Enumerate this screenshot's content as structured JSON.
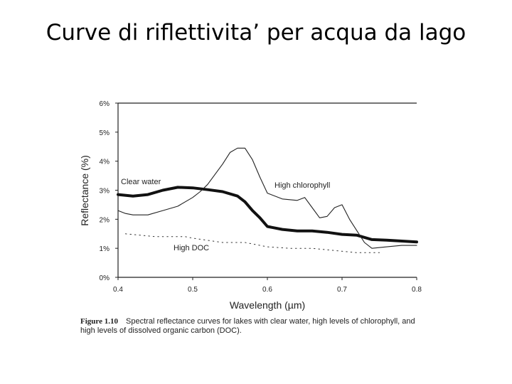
{
  "slide": {
    "title": "Curve di riflettivita’ per acqua da lago"
  },
  "chart_data": {
    "type": "line",
    "xlabel": "Wavelength (µm)",
    "ylabel": "Reflectance (%)",
    "xlim": [
      0.4,
      0.8
    ],
    "ylim": [
      0,
      6
    ],
    "xticks": [
      "0.4",
      "0.5",
      "0.6",
      "0.7",
      "0.8"
    ],
    "yticks": [
      "0%",
      "1%",
      "2%",
      "3%",
      "4%",
      "5%",
      "6%"
    ],
    "grid": false,
    "series": [
      {
        "name": "Clear water",
        "style": "thick",
        "x": [
          0.4,
          0.42,
          0.44,
          0.46,
          0.48,
          0.5,
          0.52,
          0.54,
          0.56,
          0.57,
          0.58,
          0.59,
          0.6,
          0.62,
          0.64,
          0.66,
          0.68,
          0.7,
          0.72,
          0.74,
          0.76,
          0.78,
          0.8
        ],
        "y": [
          2.85,
          2.8,
          2.85,
          3.0,
          3.1,
          3.08,
          3.02,
          2.95,
          2.8,
          2.6,
          2.3,
          2.05,
          1.75,
          1.65,
          1.6,
          1.6,
          1.55,
          1.48,
          1.45,
          1.3,
          1.28,
          1.25,
          1.22
        ]
      },
      {
        "name": "High chlorophyll",
        "style": "thin",
        "x": [
          0.4,
          0.41,
          0.42,
          0.44,
          0.46,
          0.48,
          0.5,
          0.51,
          0.52,
          0.54,
          0.55,
          0.56,
          0.57,
          0.58,
          0.59,
          0.6,
          0.62,
          0.64,
          0.65,
          0.66,
          0.67,
          0.68,
          0.69,
          0.7,
          0.71,
          0.72,
          0.73,
          0.74,
          0.76,
          0.78,
          0.8
        ],
        "y": [
          2.3,
          2.2,
          2.15,
          2.15,
          2.3,
          2.45,
          2.75,
          2.95,
          3.2,
          3.9,
          4.3,
          4.45,
          4.45,
          4.05,
          3.45,
          2.9,
          2.7,
          2.65,
          2.75,
          2.4,
          2.05,
          2.1,
          2.4,
          2.5,
          2.0,
          1.6,
          1.2,
          1.0,
          1.05,
          1.1,
          1.1
        ]
      },
      {
        "name": "High DOC",
        "style": "dotted",
        "x": [
          0.41,
          0.45,
          0.47,
          0.49,
          0.5,
          0.54,
          0.57,
          0.6,
          0.63,
          0.66,
          0.72,
          0.75
        ],
        "y": [
          1.5,
          1.4,
          1.4,
          1.4,
          1.35,
          1.2,
          1.2,
          1.05,
          1.0,
          1.0,
          0.85,
          0.85
        ]
      }
    ],
    "annotations": [
      "Clear water",
      "High chlorophyll",
      "High DOC"
    ]
  },
  "caption": {
    "label": "Figure 1.10",
    "text": "Spectral reflectance curves for lakes with clear water, high levels of chlorophyll, and high levels of dissolved organic carbon (DOC)."
  }
}
